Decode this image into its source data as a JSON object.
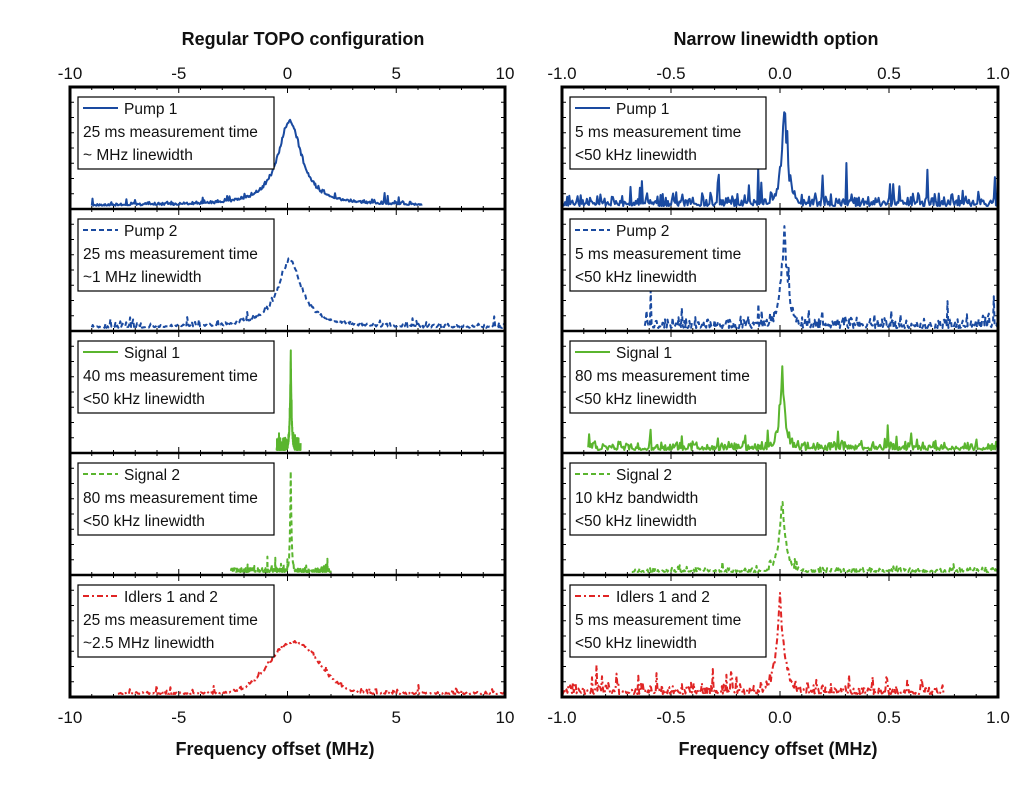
{
  "chart_data": [
    {
      "type": "line",
      "title": "Regular TOPO configuration",
      "xlabel": "Frequency offset (MHz)",
      "ylabel": "",
      "xlim": [
        -10,
        10
      ],
      "xticks": [
        "-10",
        "-5",
        "0",
        "5",
        "10"
      ],
      "grid": false,
      "panels": [
        {
          "name": "Pump 1",
          "style": "solid",
          "color": "#1a4aa0",
          "legend_lines": [
            "Pump 1",
            "25 ms measurement time",
            "~ MHz linewidth"
          ],
          "shape": "lorentzian",
          "center": 0.1,
          "width": 1.3,
          "peak": 0.78,
          "noise": 0.035,
          "extent": [
            -9.0,
            6.2
          ],
          "seed": 11
        },
        {
          "name": "Pump 2",
          "style": "dashed",
          "color": "#1a4aa0",
          "legend_lines": [
            "Pump 2",
            "25 ms measurement time",
            "~1 MHz linewidth"
          ],
          "shape": "lorentzian",
          "center": 0.1,
          "width": 1.3,
          "peak": 0.62,
          "noise": 0.04,
          "extent": [
            -9.0,
            10.0
          ],
          "seed": 23
        },
        {
          "name": "Signal 1",
          "style": "solid",
          "color": "#5ab52e",
          "legend_lines": [
            "Signal 1",
            "40 ms measurement time",
            "<50 kHz linewidth"
          ],
          "shape": "spike",
          "center": 0.15,
          "width": 0.04,
          "peak": 0.9,
          "noise": 0.08,
          "extent": [
            -0.5,
            0.6
          ],
          "seed": 37
        },
        {
          "name": "Signal 2",
          "style": "dashed",
          "color": "#5ab52e",
          "legend_lines": [
            "Signal 2",
            "80 ms measurement time",
            "<50 kHz linewidth"
          ],
          "shape": "spike",
          "center": 0.15,
          "width": 0.04,
          "peak": 0.95,
          "noise": 0.05,
          "extent": [
            -2.6,
            2.0
          ],
          "seed": 41
        },
        {
          "name": "Idlers 1 and 2",
          "style": "dashdot",
          "color": "#e02424",
          "legend_lines": [
            "Idlers 1 and 2",
            "25 ms measurement time",
            "~2.5 MHz linewidth"
          ],
          "shape": "gaussian",
          "center": 0.3,
          "width": 2.6,
          "peak": 0.48,
          "noise": 0.03,
          "extent": [
            -7.8,
            10.0
          ],
          "seed": 53
        }
      ]
    },
    {
      "type": "line",
      "title": "Narrow linewidth option",
      "xlabel": "Frequency offset (MHz)",
      "ylabel": "",
      "xlim": [
        -1.0,
        1.0
      ],
      "xticks": [
        "-1.0",
        "-0.5",
        "0.0",
        "0.5",
        "1.0"
      ],
      "grid": false,
      "panels": [
        {
          "name": "Pump 1",
          "style": "solid",
          "color": "#1a4aa0",
          "legend_lines": [
            "Pump 1",
            "5 ms measurement time",
            "<50 kHz linewidth"
          ],
          "shape": "spike",
          "center": 0.02,
          "width": 0.018,
          "peak": 0.92,
          "noise": 0.14,
          "extent": [
            -1.0,
            1.0
          ],
          "seed": 61
        },
        {
          "name": "Pump 2",
          "style": "dashed",
          "color": "#1a4aa0",
          "legend_lines": [
            "Pump 2",
            "5 ms measurement time",
            "<50 kHz linewidth"
          ],
          "shape": "spike",
          "center": 0.02,
          "width": 0.02,
          "peak": 0.88,
          "noise": 0.13,
          "extent": [
            -0.62,
            1.0
          ],
          "seed": 71
        },
        {
          "name": "Signal 1",
          "style": "solid",
          "color": "#5ab52e",
          "legend_lines": [
            "Signal 1",
            "80 ms measurement time",
            "<50 kHz linewidth"
          ],
          "shape": "spike",
          "center": 0.01,
          "width": 0.015,
          "peak": 0.7,
          "noise": 0.1,
          "extent": [
            -0.88,
            1.0
          ],
          "seed": 83
        },
        {
          "name": "Signal 2",
          "style": "dashed",
          "color": "#5ab52e",
          "legend_lines": [
            "Signal 2",
            "10 kHz bandwidth",
            "<50 kHz linewidth"
          ],
          "shape": "spike",
          "center": 0.01,
          "width": 0.018,
          "peak": 0.7,
          "noise": 0.05,
          "extent": [
            -0.68,
            1.0
          ],
          "seed": 97
        },
        {
          "name": "Idlers 1 and 2",
          "style": "dashdot",
          "color": "#e02424",
          "legend_lines": [
            "Idlers 1 and 2",
            "5 ms measurement time",
            "<50 kHz linewidth"
          ],
          "shape": "spike",
          "center": 0.0,
          "width": 0.022,
          "peak": 0.9,
          "noise": 0.11,
          "extent": [
            -1.0,
            0.75
          ],
          "seed": 103
        }
      ]
    }
  ]
}
